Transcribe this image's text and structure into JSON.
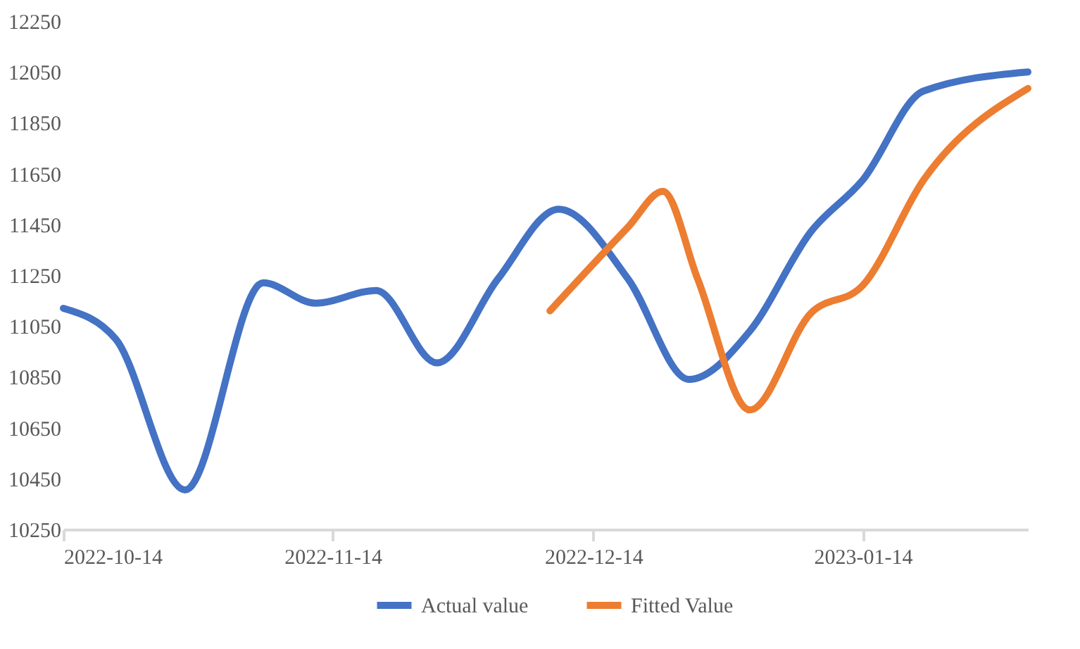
{
  "chart_data": {
    "type": "line",
    "xlim": [
      "2022-10-14",
      "2023-02-02"
    ],
    "xticks": [
      "2022-10-14",
      "2022-11-14",
      "2022-12-14",
      "2023-01-14"
    ],
    "ylim": [
      10250,
      12250
    ],
    "yticks": [
      10250,
      10450,
      10650,
      10850,
      11050,
      11250,
      11450,
      11650,
      11850,
      12050,
      12250
    ],
    "grid": false,
    "legend": "bottom",
    "series": [
      {
        "name": "Actual value",
        "color": "#4472c4",
        "x": [
          "2022-10-14",
          "2022-10-20",
          "2022-10-28",
          "2022-11-06",
          "2022-11-12",
          "2022-11-19",
          "2022-11-26",
          "2022-12-03",
          "2022-12-10",
          "2022-12-18",
          "2022-12-25",
          "2023-01-01",
          "2023-01-08",
          "2023-01-14",
          "2023-01-21",
          "2023-02-02"
        ],
        "values": [
          11120,
          11000,
          10405,
          11220,
          11140,
          11190,
          10905,
          11235,
          11510,
          11235,
          10840,
          11030,
          11420,
          11625,
          11975,
          12050
        ]
      },
      {
        "name": "Fitted Value",
        "color": "#ed7d31",
        "x": [
          "2022-12-09",
          "2022-12-18",
          "2022-12-22",
          "2022-12-26",
          "2023-01-01",
          "2023-01-08",
          "2023-01-14",
          "2023-01-21",
          "2023-02-02"
        ],
        "values": [
          11110,
          11440,
          11580,
          11235,
          10720,
          11100,
          11210,
          11625,
          11985
        ]
      }
    ]
  }
}
